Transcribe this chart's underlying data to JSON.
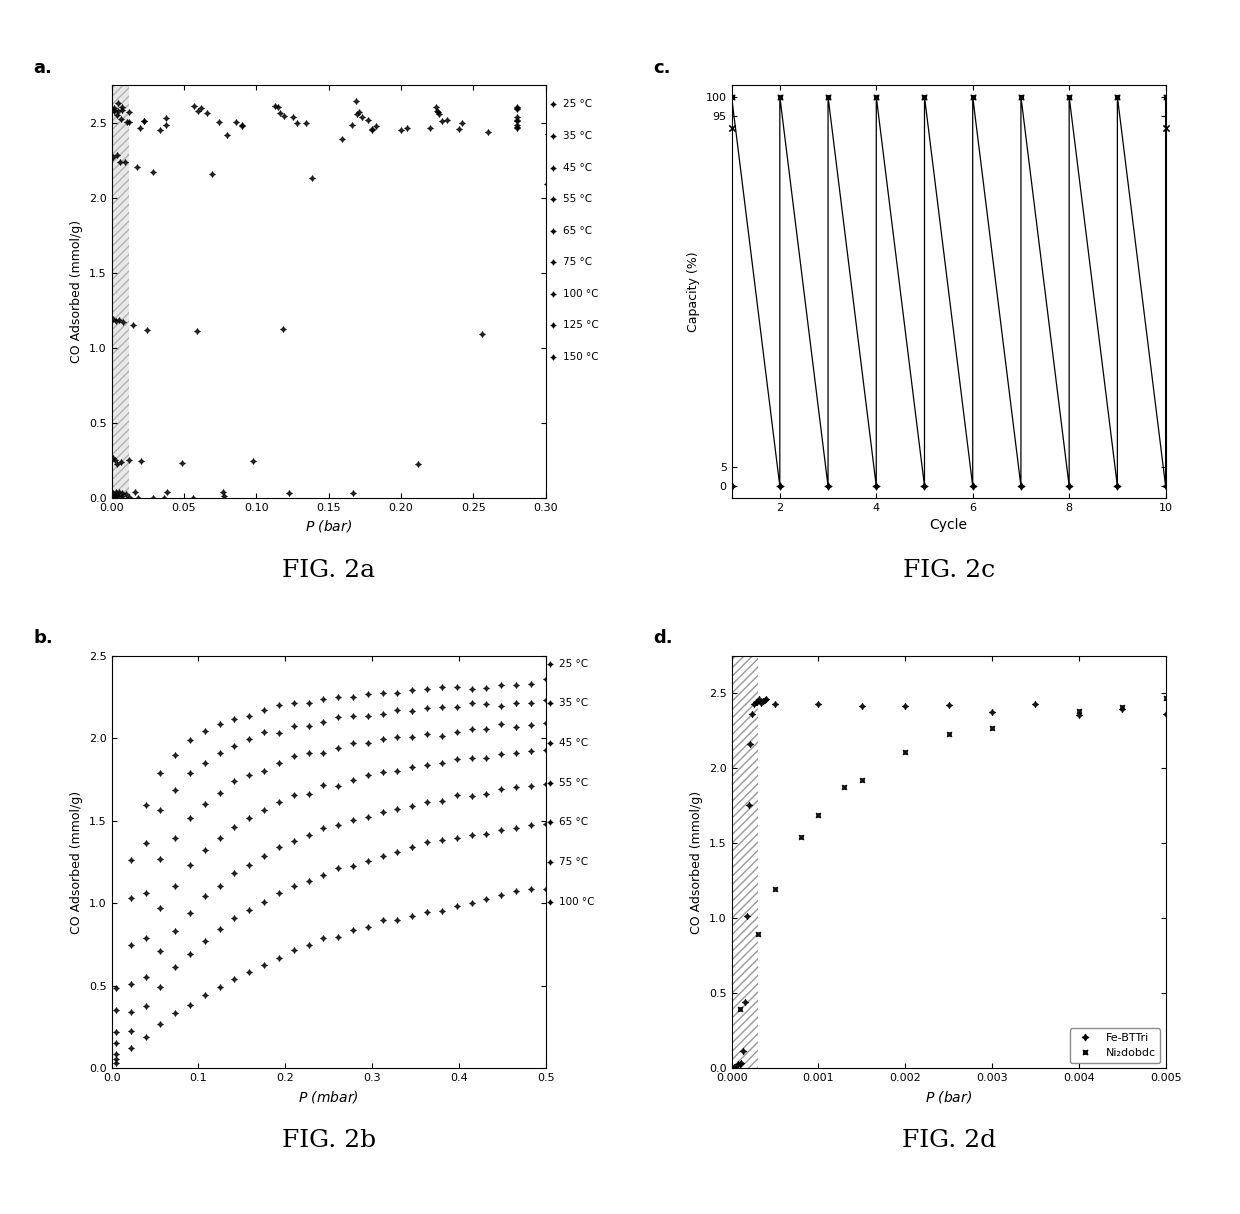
{
  "fig_width": 12.4,
  "fig_height": 12.14,
  "panel_a": {
    "label": "a.",
    "xlabel": "P (bar)",
    "ylabel": "CO Adsorbed (mmol/g)",
    "xlim": [
      0.0,
      0.3
    ],
    "ylim": [
      0.0,
      2.75
    ],
    "xticks": [
      0.0,
      0.05,
      0.1,
      0.15,
      0.2,
      0.25,
      0.3
    ],
    "yticks": [
      0.0,
      0.5,
      1.0,
      1.5,
      2.0,
      2.5
    ],
    "legend_labels": [
      "25 °C",
      "35 °C",
      "45 °C",
      "55 °C",
      "65 °C",
      "75 °C",
      "100 °C",
      "125 °C",
      "150 °C"
    ],
    "caption": "FIG. 2a"
  },
  "panel_b": {
    "label": "b.",
    "xlabel": "P (mbar)",
    "ylabel": "CO Adsorbed (mmol/g)",
    "xlim": [
      0.0,
      0.5
    ],
    "ylim": [
      0.0,
      2.5
    ],
    "xticks": [
      0.0,
      0.1,
      0.2,
      0.3,
      0.4,
      0.5
    ],
    "yticks": [
      0.0,
      0.5,
      1.0,
      1.5,
      2.0,
      2.5
    ],
    "legend_labels": [
      "25 °C",
      "35 °C",
      "45 °C",
      "55 °C",
      "65 °C",
      "75 °C",
      "100 °C"
    ],
    "caption": "FIG. 2b"
  },
  "panel_c": {
    "label": "c.",
    "xlabel": "Cycle",
    "ylabel": "Capacity (%)",
    "xlim": [
      1,
      10
    ],
    "ylim": [
      0,
      100
    ],
    "xticks": [
      2,
      4,
      6,
      8,
      10
    ],
    "yticks": [
      0,
      5,
      95,
      100
    ],
    "caption": "FIG. 2c"
  },
  "panel_d": {
    "label": "d.",
    "xlabel": "P (bar)",
    "ylabel": "CO Adsorbed (mmol/g)",
    "xlim": [
      0.0,
      0.005
    ],
    "ylim": [
      0.0,
      2.75
    ],
    "xticks": [
      0.0,
      0.001,
      0.002,
      0.003,
      0.004,
      0.005
    ],
    "yticks": [
      0.0,
      0.5,
      1.0,
      1.5,
      2.0,
      2.5
    ],
    "legend_labels": [
      "Fe-BTTri",
      "Ni₂dobdc"
    ],
    "caption": "FIG. 2d"
  }
}
